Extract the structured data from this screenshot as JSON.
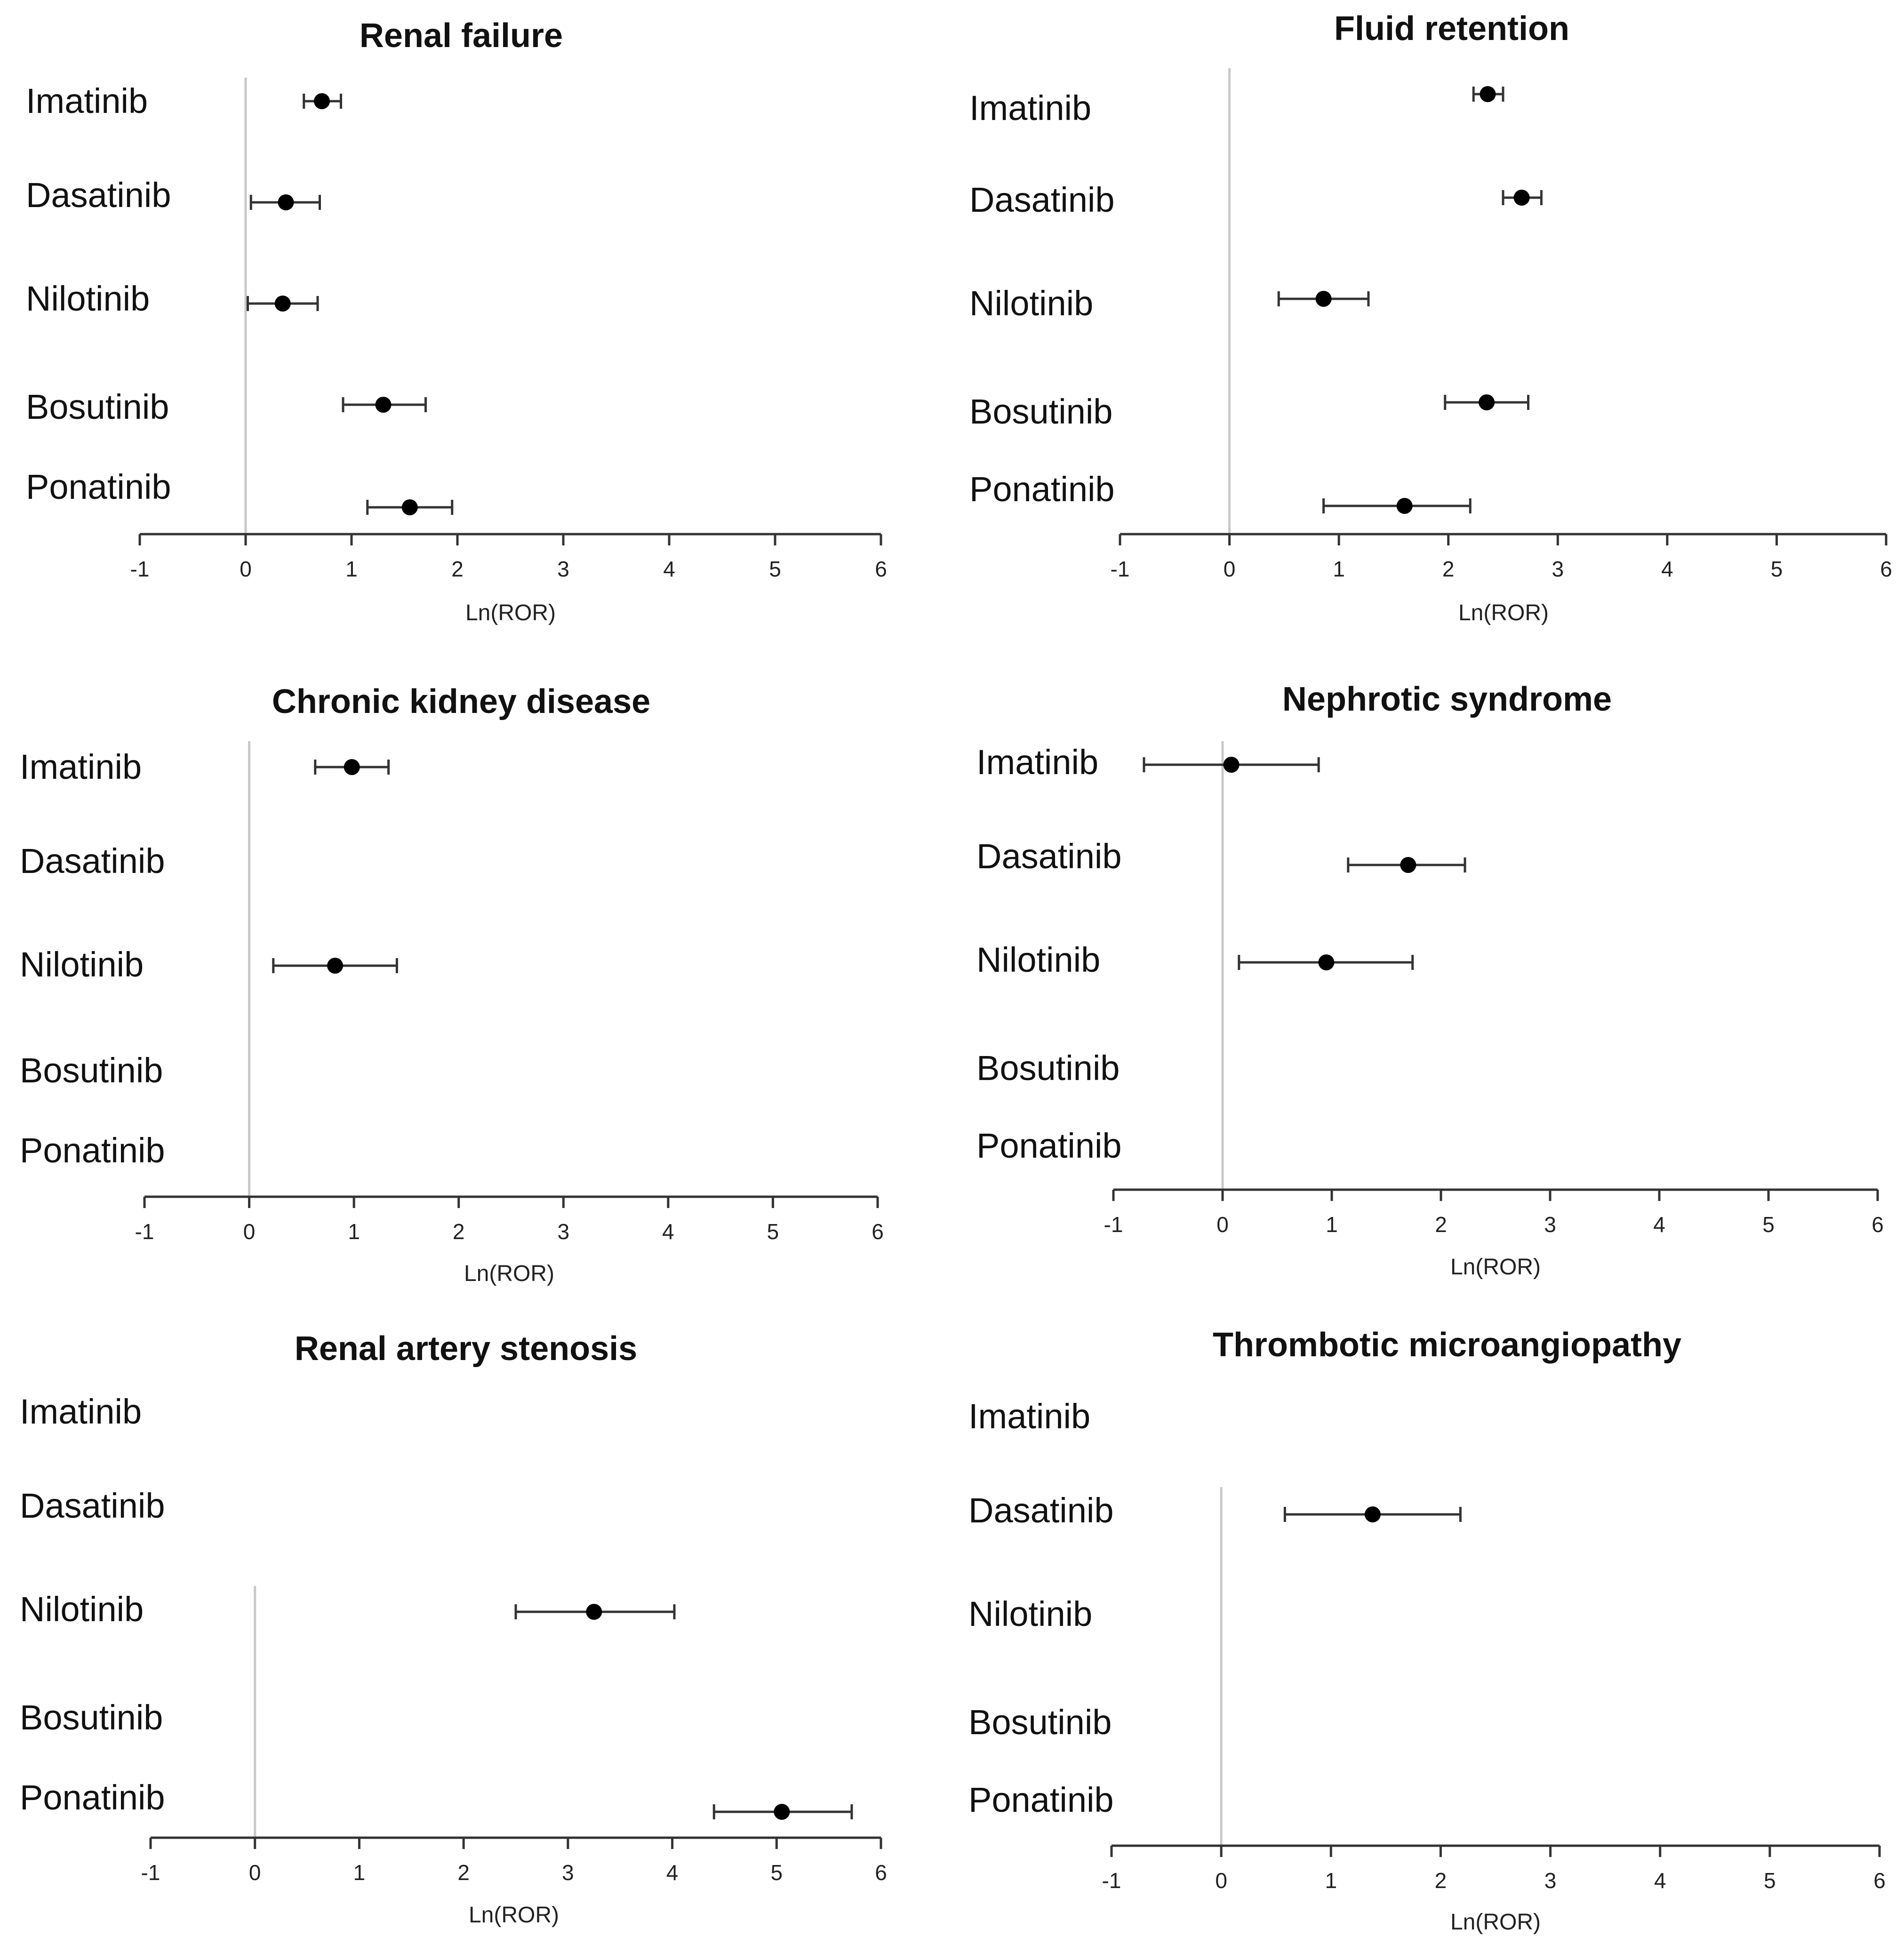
{
  "chart_data": [
    {
      "type": "forest",
      "title": "Renal failure",
      "xlabel": "Ln(ROR)",
      "xlim": [
        -1,
        6
      ],
      "xticks": [
        "-1",
        "0",
        "1",
        "2",
        "3",
        "4",
        "5",
        "6"
      ],
      "categories": [
        "Imatinib",
        "Dasatinib",
        "Nilotinib",
        "Bosutinib",
        "Ponatinib"
      ],
      "estimates": [
        0.72,
        0.38,
        0.35,
        1.3,
        1.55
      ],
      "ci_lower": [
        0.55,
        0.05,
        0.02,
        0.92,
        1.15
      ],
      "ci_upper": [
        0.9,
        0.7,
        0.68,
        1.7,
        1.95
      ]
    },
    {
      "type": "forest",
      "title": "Fluid retention",
      "xlabel": "Ln(ROR)",
      "xlim": [
        -1,
        6
      ],
      "xticks": [
        "-1",
        "0",
        "1",
        "2",
        "3",
        "4",
        "5",
        "6"
      ],
      "categories": [
        "Imatinib",
        "Dasatinib",
        "Nilotinib",
        "Bosutinib",
        "Ponatinib"
      ],
      "estimates": [
        2.36,
        2.67,
        0.86,
        2.35,
        1.6
      ],
      "ci_lower": [
        2.23,
        2.5,
        0.45,
        1.97,
        0.86
      ],
      "ci_upper": [
        2.5,
        2.85,
        1.27,
        2.73,
        2.2
      ]
    },
    {
      "type": "forest",
      "title": "Chronic kidney disease",
      "xlabel": "Ln(ROR)",
      "xlim": [
        -1,
        6
      ],
      "xticks": [
        "-1",
        "0",
        "1",
        "2",
        "3",
        "4",
        "5",
        "6"
      ],
      "categories": [
        "Imatinib",
        "Dasatinib",
        "Nilotinib",
        "Bosutinib",
        "Ponatinib"
      ],
      "estimates": [
        0.98,
        null,
        0.82,
        null,
        null
      ],
      "ci_lower": [
        0.63,
        null,
        0.23,
        null,
        null
      ],
      "ci_upper": [
        1.33,
        null,
        1.41,
        null,
        null
      ]
    },
    {
      "type": "forest",
      "title": "Nephrotic syndrome",
      "xlabel": "Ln(ROR)",
      "xlim": [
        -1,
        6
      ],
      "xticks": [
        "-1",
        "0",
        "1",
        "2",
        "3",
        "4",
        "5",
        "6"
      ],
      "categories": [
        "Imatinib",
        "Dasatinib",
        "Nilotinib",
        "Bosutinib",
        "Ponatinib"
      ],
      "estimates": [
        0.08,
        1.7,
        0.95,
        null,
        null
      ],
      "ci_lower": [
        -0.72,
        1.15,
        0.15,
        null,
        null
      ],
      "ci_upper": [
        0.88,
        2.22,
        1.74,
        null,
        null
      ]
    },
    {
      "type": "forest",
      "title": "Renal artery stenosis",
      "xlabel": "Ln(ROR)",
      "xlim": [
        -1,
        6
      ],
      "xticks": [
        "-1",
        "0",
        "1",
        "2",
        "3",
        "4",
        "5",
        "6"
      ],
      "categories": [
        "Imatinib",
        "Dasatinib",
        "Nilotinib",
        "Bosutinib",
        "Ponatinib"
      ],
      "estimates": [
        null,
        null,
        3.25,
        null,
        5.05
      ],
      "ci_lower": [
        null,
        null,
        2.5,
        null,
        4.4
      ],
      "ci_upper": [
        null,
        null,
        4.02,
        null,
        5.72
      ]
    },
    {
      "type": "forest",
      "title": "Thrombotic microangiopathy",
      "xlabel": "Ln(ROR)",
      "xlim": [
        -1,
        6
      ],
      "xticks": [
        "-1",
        "0",
        "1",
        "2",
        "3",
        "4",
        "5",
        "6"
      ],
      "categories": [
        "Imatinib",
        "Dasatinib",
        "Nilotinib",
        "Bosutinib",
        "Ponatinib"
      ],
      "estimates": [
        null,
        1.38,
        null,
        null,
        null
      ],
      "ci_lower": [
        null,
        0.58,
        null,
        null,
        null
      ],
      "ci_upper": [
        null,
        2.18,
        null,
        null,
        null
      ]
    }
  ]
}
